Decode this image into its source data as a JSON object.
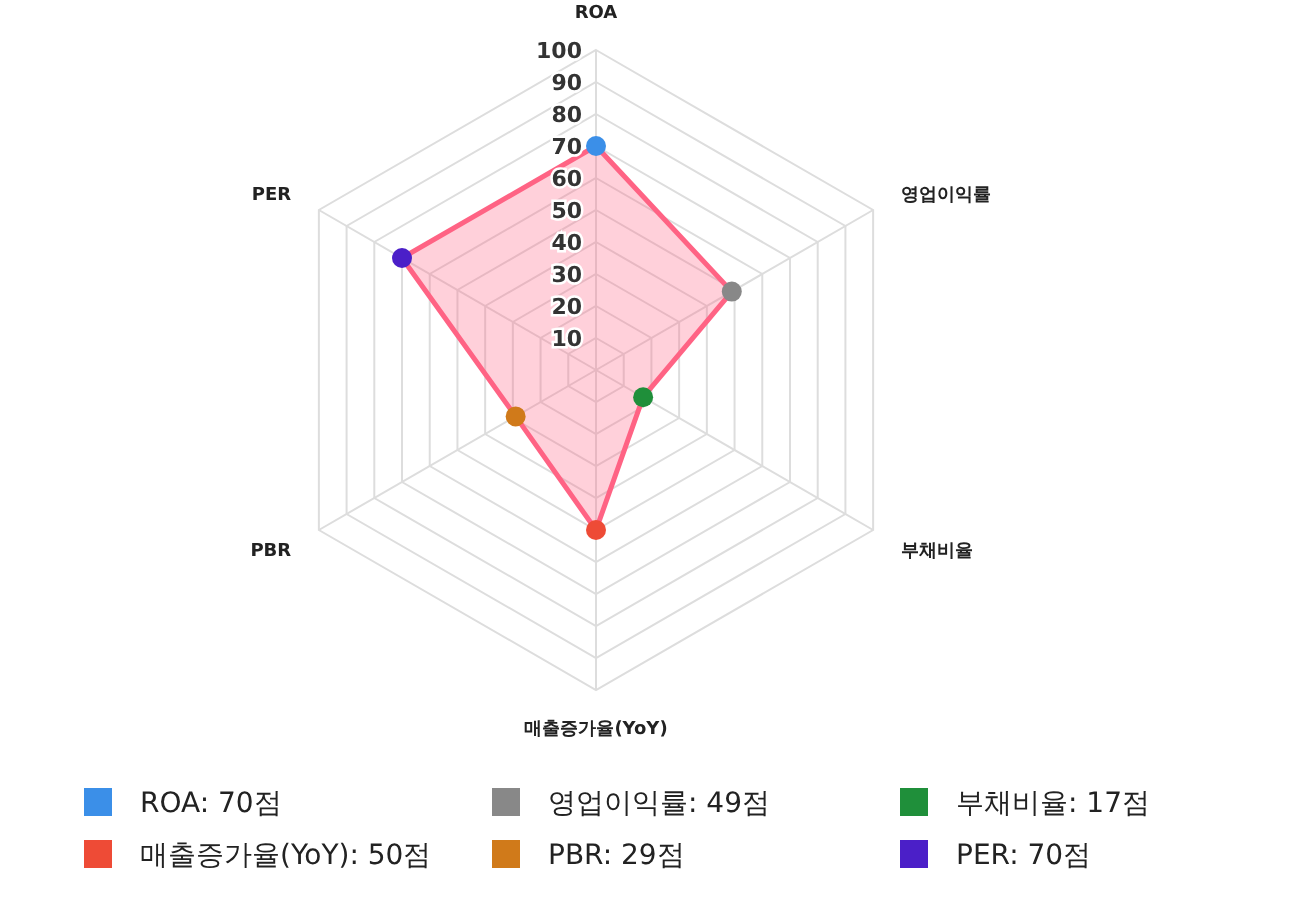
{
  "chart_data": {
    "type": "radar",
    "categories": [
      "ROA",
      "영업이익률",
      "부채비율",
      "매출증가율(YoY)",
      "PBR",
      "PER"
    ],
    "series": [
      {
        "color": "#ff6384",
        "values": [
          70,
          49,
          17,
          50,
          29,
          70
        ],
        "colors": [
          "#3b8fe8",
          "#888888",
          "#1f8f3a",
          "#ee4b36",
          "#d07a1a",
          "#4b1fc8"
        ]
      }
    ],
    "annotations": [
      "ROA: 70점",
      "영업이익률: 49점",
      "부채비율: 17점",
      "매출증가율(YoY): 50점",
      "PBR: 29점",
      "PER: 70점"
    ],
    "ylim": [
      0,
      100
    ],
    "yticks": [
      10,
      20,
      30,
      40,
      50,
      60,
      70,
      80,
      90,
      100
    ],
    "grid": true,
    "marker": "circle"
  }
}
